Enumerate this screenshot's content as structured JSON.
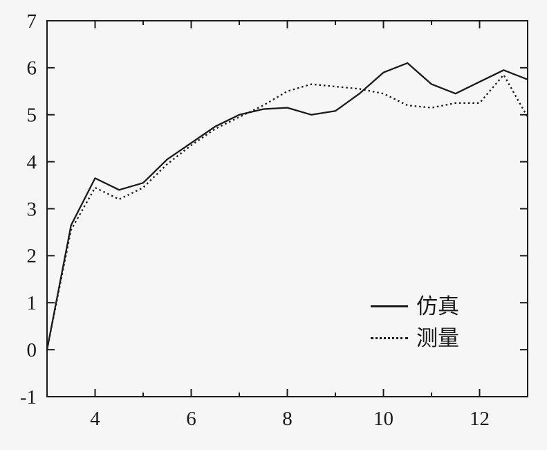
{
  "figure": {
    "background": "#f6f6f6",
    "line_color": "#1a1a1a"
  },
  "chart_data": {
    "type": "line",
    "title": "",
    "xlabel": "",
    "ylabel": "",
    "grid": false,
    "legend_position": "lower-right",
    "xlim": [
      3,
      13
    ],
    "ylim": [
      -1,
      7
    ],
    "x_ticks_major": [
      4,
      6,
      8,
      10,
      12
    ],
    "x_ticks_minor": [
      3,
      5,
      7,
      9,
      11,
      13
    ],
    "y_ticks_major": [
      -1,
      0,
      1,
      2,
      3,
      4,
      5,
      6,
      7
    ],
    "x": [
      3,
      3.5,
      4,
      4.5,
      5,
      5.5,
      6,
      6.5,
      7,
      7.5,
      8,
      8.5,
      9,
      9.5,
      10,
      10.5,
      11,
      11.5,
      12,
      12.5,
      13
    ],
    "series": [
      {
        "name": "仿真",
        "style": "solid",
        "values": [
          0,
          2.65,
          3.65,
          3.4,
          3.55,
          4.05,
          4.4,
          4.75,
          5.0,
          5.12,
          5.15,
          5.0,
          5.08,
          5.45,
          5.9,
          6.1,
          5.65,
          5.45,
          5.7,
          5.95,
          5.75
        ]
      },
      {
        "name": "测量",
        "style": "dotted",
        "values": [
          0,
          2.55,
          3.45,
          3.2,
          3.45,
          3.95,
          4.35,
          4.7,
          4.95,
          5.2,
          5.5,
          5.65,
          5.6,
          5.55,
          5.45,
          5.2,
          5.15,
          5.25,
          5.25,
          5.85,
          4.95
        ]
      }
    ]
  },
  "legend": {
    "items": [
      {
        "label": "仿真",
        "style": "solid"
      },
      {
        "label": "测量",
        "style": "dotted"
      }
    ]
  }
}
